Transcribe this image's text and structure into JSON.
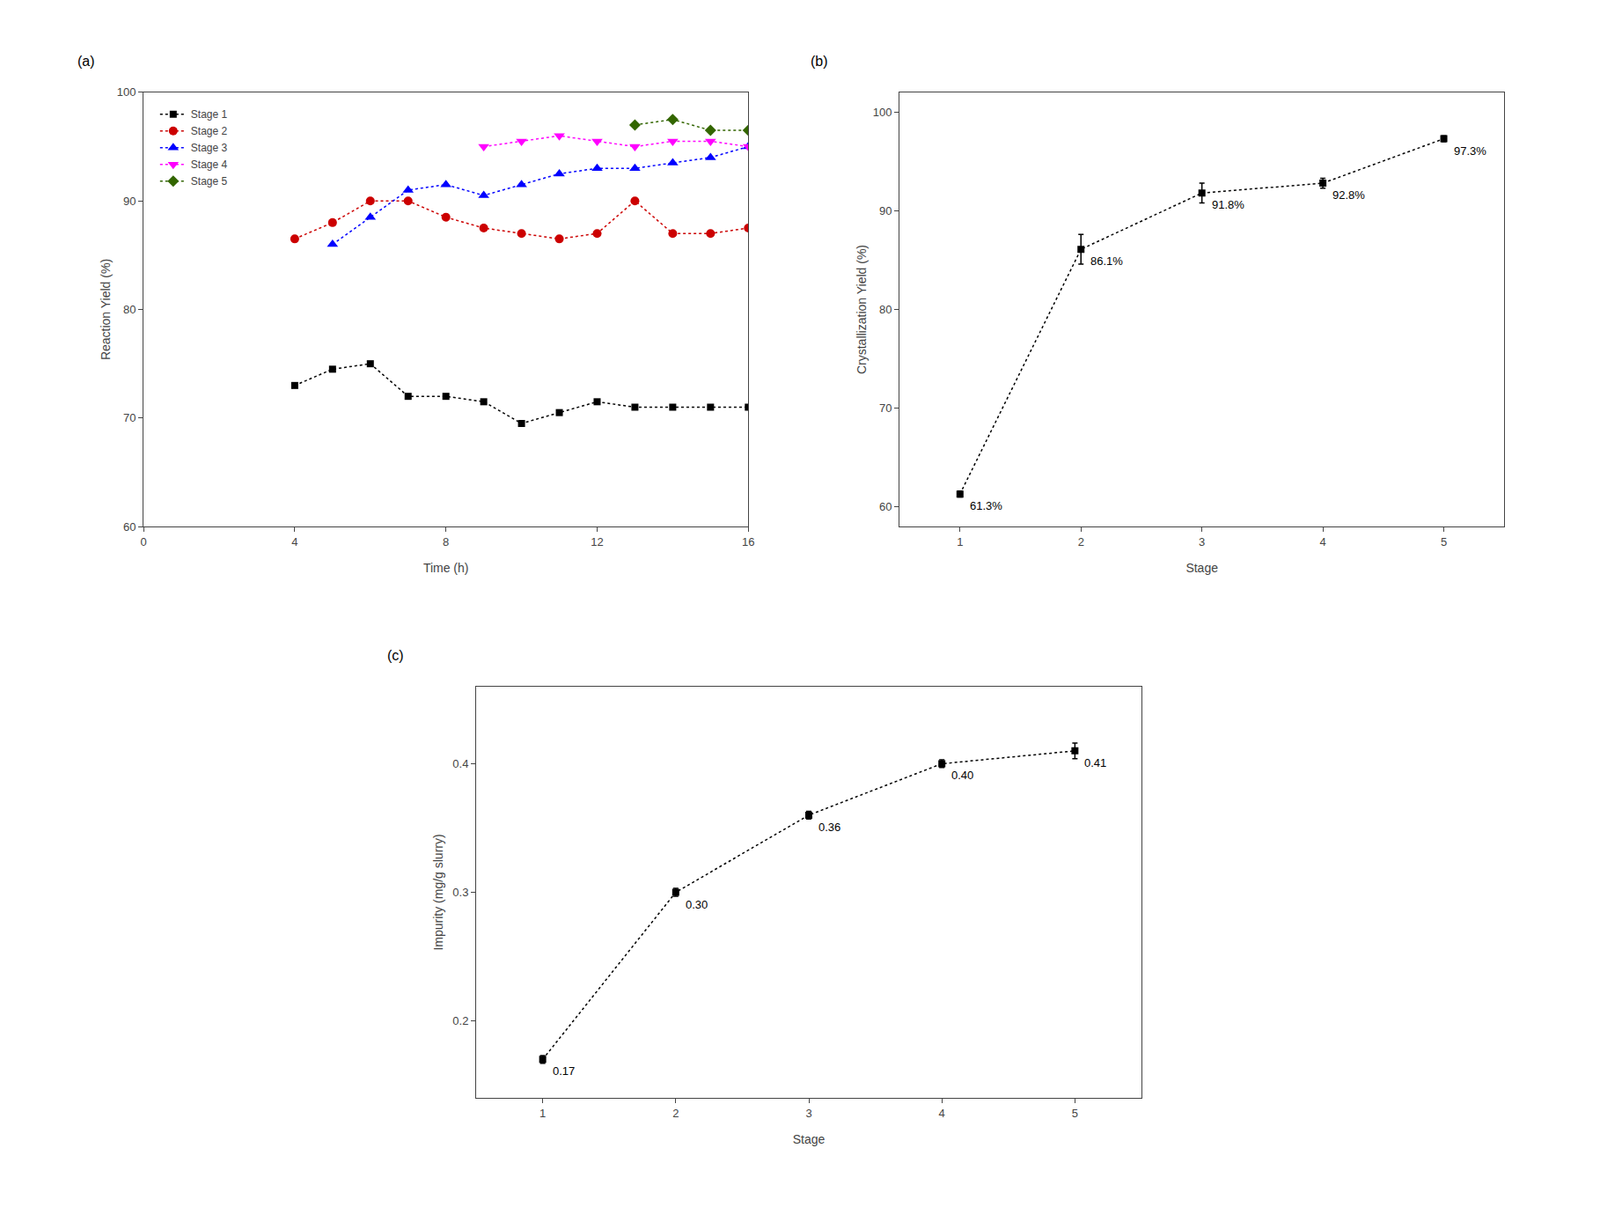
{
  "chart_data": [
    {
      "type": "line",
      "title": "(a)",
      "xlabel": "Time (h)",
      "ylabel": "Reaction Yield (%)",
      "series": [
        {
          "name": "Stage 1",
          "color": "black",
          "marker": "square",
          "line_style": "dotted",
          "x": [
            4,
            5,
            6,
            7,
            8,
            9,
            10,
            11,
            12,
            13,
            14,
            15,
            16
          ],
          "values": [
            73.0,
            74.5,
            75.0,
            72.0,
            72.0,
            71.5,
            69.5,
            70.5,
            71.5,
            71.0,
            71.0,
            71.0,
            71.0
          ]
        },
        {
          "name": "Stage 2",
          "color": "#CC0000",
          "marker": "circle",
          "line_style": "dotted",
          "x": [
            4,
            5,
            6,
            7,
            8,
            9,
            10,
            11,
            12,
            13,
            14,
            15,
            16
          ],
          "values": [
            86.5,
            88.0,
            90.0,
            90.0,
            88.5,
            87.5,
            87.0,
            86.5,
            87.0,
            90.0,
            87.0,
            87.0,
            87.5
          ]
        },
        {
          "name": "Stage 3",
          "color": "blue",
          "marker": "triangle-up",
          "line_style": "dotted",
          "x": [
            5,
            6,
            7,
            8,
            9,
            10,
            11,
            12,
            13,
            14,
            15,
            16
          ],
          "values": [
            86.0,
            88.5,
            91.0,
            91.5,
            90.5,
            91.5,
            92.5,
            93.0,
            93.0,
            93.5,
            94.0,
            95.0
          ]
        },
        {
          "name": "Stage 4",
          "color": "magenta",
          "marker": "triangle-down",
          "line_style": "dotted",
          "x": [
            9,
            10,
            11,
            12,
            13,
            14,
            15,
            16
          ],
          "values": [
            95.0,
            95.5,
            96.0,
            95.5,
            95.0,
            95.5,
            95.5,
            95.0
          ]
        },
        {
          "name": "Stage 5",
          "color": "#336600",
          "marker": "diamond",
          "line_style": "dotted",
          "x": [
            13,
            14,
            15,
            16
          ],
          "values": [
            97.0,
            97.5,
            96.5,
            96.5
          ]
        }
      ],
      "xlim": [
        0,
        16
      ],
      "xticks": [
        0,
        4,
        8,
        12,
        16
      ],
      "ylim": [
        60,
        100
      ],
      "yticks": [
        60,
        70,
        80,
        90,
        100
      ],
      "legend": "upper left",
      "grid": false
    },
    {
      "type": "line",
      "title": "(b)",
      "xlabel": "Stage",
      "ylabel": "Crystallization Yield (%)",
      "x": [
        1,
        2,
        3,
        4,
        5
      ],
      "values": [
        61.3,
        86.1,
        91.8,
        92.8,
        97.3
      ],
      "errors": [
        0.3,
        1.5,
        1.0,
        0.5,
        0.3
      ],
      "value_labels": [
        "61.3%",
        "86.1%",
        "91.8%",
        "92.8%",
        "97.3%"
      ],
      "data_labels": true,
      "color": "black",
      "marker": "square",
      "line_style": "dotted",
      "xlim": [
        0.5,
        5.5
      ],
      "xticks": [
        1,
        2,
        3,
        4,
        5
      ],
      "ylim": [
        58,
        102
      ],
      "yticks": [
        60,
        70,
        80,
        90,
        100
      ],
      "grid": false
    },
    {
      "type": "line",
      "title": "(c)",
      "xlabel": "Stage",
      "ylabel": "Impurity (mg/g slurry)",
      "x": [
        1,
        2,
        3,
        4,
        5
      ],
      "values": [
        0.17,
        0.3,
        0.36,
        0.4,
        0.41
      ],
      "errors": [
        0.003,
        0.003,
        0.003,
        0.003,
        0.006
      ],
      "value_labels": [
        "0.17",
        "0.30",
        "0.36",
        "0.40",
        "0.41"
      ],
      "data_labels": true,
      "color": "black",
      "marker": "square",
      "line_style": "dotted",
      "xlim": [
        0.5,
        5.5
      ],
      "xticks": [
        1,
        2,
        3,
        4,
        5
      ],
      "ylim": [
        0.14,
        0.46
      ],
      "yticks": [
        0.2,
        0.3,
        0.4
      ],
      "grid": false
    }
  ]
}
